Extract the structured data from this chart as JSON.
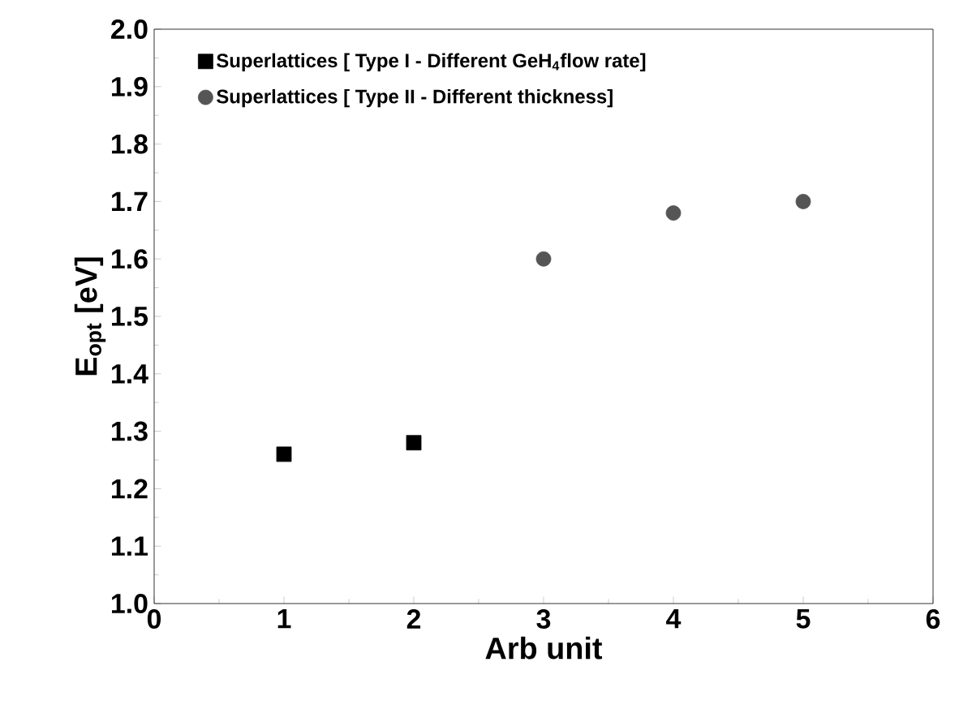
{
  "chart_data": {
    "type": "scatter",
    "xlabel": "Arb unit",
    "ylabel": "E$_{opt}$ [eV]",
    "xlim": [
      0,
      6
    ],
    "ylim": [
      1.0,
      2.0
    ],
    "xticks": [
      0,
      1,
      2,
      3,
      4,
      5,
      6
    ],
    "yticks": [
      {
        "value": 1.0,
        "label": "1.0"
      },
      {
        "value": 1.1,
        "label": "1.1"
      },
      {
        "value": 1.2,
        "label": "1.2"
      },
      {
        "value": 1.3,
        "label": "1.3"
      },
      {
        "value": 1.4,
        "label": "1.4"
      },
      {
        "value": 1.5,
        "label": "1.5"
      },
      {
        "value": 1.6,
        "label": "1.6"
      },
      {
        "value": 1.7,
        "label": "1.7"
      },
      {
        "value": 1.8,
        "label": "1.8"
      },
      {
        "value": 1.9,
        "label": "1.9"
      },
      {
        "value": 2.0,
        "label": "2.0"
      }
    ],
    "grid": false,
    "legend": "top left",
    "series": [
      {
        "name": "Superlattices [ Type I - Different GeH$_{4}$flow rate]",
        "color": "#000000",
        "marker": "square",
        "x": [
          1,
          2
        ],
        "values": [
          1.26,
          1.28
        ]
      },
      {
        "name": "Superlattices [ Type II - Different thickness]",
        "color": "#555555",
        "marker": "circle",
        "x": [
          3,
          4,
          5
        ],
        "values": [
          1.6,
          1.68,
          1.7
        ]
      }
    ]
  }
}
